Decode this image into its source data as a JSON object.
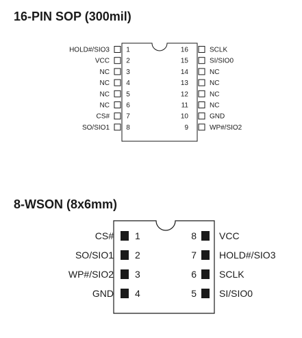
{
  "sop": {
    "title": "16-PIN SOP (300mil)",
    "left_pins": [
      {
        "num": "1",
        "label": "HOLD#/SIO3"
      },
      {
        "num": "2",
        "label": "VCC"
      },
      {
        "num": "3",
        "label": "NC"
      },
      {
        "num": "4",
        "label": "NC"
      },
      {
        "num": "5",
        "label": "NC"
      },
      {
        "num": "6",
        "label": "NC"
      },
      {
        "num": "7",
        "label": "CS#"
      },
      {
        "num": "8",
        "label": "SO/SIO1"
      }
    ],
    "right_pins": [
      {
        "num": "16",
        "label": "SCLK"
      },
      {
        "num": "15",
        "label": "SI/SIO0"
      },
      {
        "num": "14",
        "label": "NC"
      },
      {
        "num": "13",
        "label": "NC"
      },
      {
        "num": "12",
        "label": "NC"
      },
      {
        "num": "11",
        "label": "NC"
      },
      {
        "num": "10",
        "label": "GND"
      },
      {
        "num": "9",
        "label": "WP#/SIO2"
      }
    ]
  },
  "wson": {
    "title": "8-WSON (8x6mm)",
    "left_pins": [
      {
        "num": "1",
        "label": "CS#"
      },
      {
        "num": "2",
        "label": "SO/SIO1"
      },
      {
        "num": "3",
        "label": "WP#/SIO2"
      },
      {
        "num": "4",
        "label": "GND"
      }
    ],
    "right_pins": [
      {
        "num": "8",
        "label": "VCC"
      },
      {
        "num": "7",
        "label": "HOLD#/SIO3"
      },
      {
        "num": "6",
        "label": "SCLK"
      },
      {
        "num": "5",
        "label": "SI/SIO0"
      }
    ]
  }
}
